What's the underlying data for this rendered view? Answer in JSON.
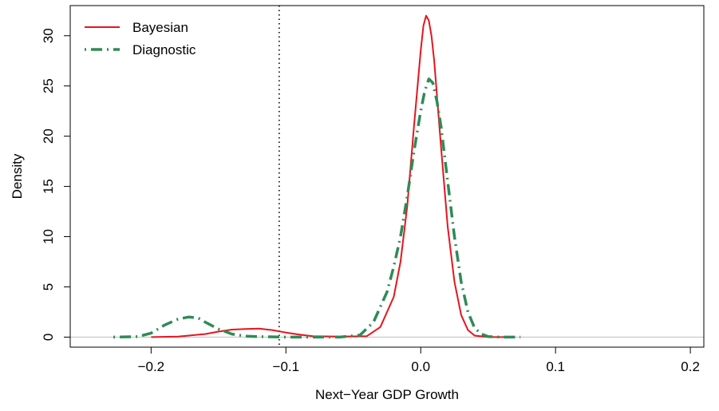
{
  "chart_data": {
    "type": "line",
    "title": "",
    "xlabel": "Next−Year GDP Growth",
    "ylabel": "Density",
    "xlim": [
      -0.26,
      0.21
    ],
    "ylim": [
      -1,
      33
    ],
    "x_ticks": [
      -0.2,
      -0.1,
      0.0,
      0.1,
      0.2
    ],
    "x_tick_labels": [
      "−0.2",
      "−0.1",
      "0.0",
      "0.1",
      "0.2"
    ],
    "y_ticks": [
      0,
      5,
      10,
      15,
      20,
      25,
      30
    ],
    "y_tick_labels": [
      "0",
      "5",
      "10",
      "15",
      "20",
      "25",
      "30"
    ],
    "grid": false,
    "legend_position": "top-left",
    "reference_lines": [
      {
        "orientation": "vertical",
        "x": -0.105,
        "style": "dotted",
        "color": "#000000"
      },
      {
        "orientation": "horizontal",
        "y": 0,
        "style": "solid",
        "color": "#bebebe"
      }
    ],
    "series": [
      {
        "name": "Bayesian",
        "color": "#e8141c",
        "style": "solid",
        "x": [
          -0.2,
          -0.18,
          -0.16,
          -0.15,
          -0.14,
          -0.13,
          -0.12,
          -0.11,
          -0.1,
          -0.09,
          -0.08,
          -0.06,
          -0.04,
          -0.03,
          -0.02,
          -0.015,
          -0.01,
          -0.005,
          0.0,
          0.002,
          0.004,
          0.006,
          0.008,
          0.01,
          0.015,
          0.02,
          0.025,
          0.03,
          0.035,
          0.04,
          0.05,
          0.06,
          0.07
        ],
        "y": [
          0.0,
          0.05,
          0.3,
          0.55,
          0.75,
          0.8,
          0.85,
          0.7,
          0.45,
          0.25,
          0.1,
          0.05,
          0.1,
          1.0,
          4.0,
          7.5,
          13.0,
          21.0,
          28.5,
          31.0,
          32.0,
          31.5,
          30.0,
          27.5,
          19.0,
          11.0,
          5.5,
          2.2,
          0.7,
          0.15,
          0.0,
          0.0,
          0.0
        ]
      },
      {
        "name": "Diagnostic",
        "color": "#2e8b57",
        "style": "dashdot",
        "x": [
          -0.228,
          -0.21,
          -0.2,
          -0.19,
          -0.18,
          -0.172,
          -0.165,
          -0.16,
          -0.15,
          -0.14,
          -0.13,
          -0.12,
          -0.1,
          -0.08,
          -0.06,
          -0.045,
          -0.035,
          -0.025,
          -0.02,
          -0.015,
          -0.01,
          -0.005,
          0.0,
          0.003,
          0.006,
          0.009,
          0.012,
          0.015,
          0.02,
          0.025,
          0.03,
          0.035,
          0.04,
          0.045,
          0.05,
          0.06,
          0.074
        ],
        "y": [
          0.0,
          0.05,
          0.4,
          1.2,
          1.8,
          2.0,
          1.9,
          1.5,
          0.8,
          0.3,
          0.1,
          0.05,
          0.0,
          0.0,
          0.0,
          0.2,
          1.5,
          4.5,
          7.0,
          10.0,
          14.0,
          18.5,
          22.5,
          24.5,
          25.7,
          25.3,
          23.5,
          21.0,
          15.5,
          10.0,
          5.5,
          2.5,
          0.9,
          0.3,
          0.05,
          0.0,
          0.0
        ]
      }
    ]
  }
}
